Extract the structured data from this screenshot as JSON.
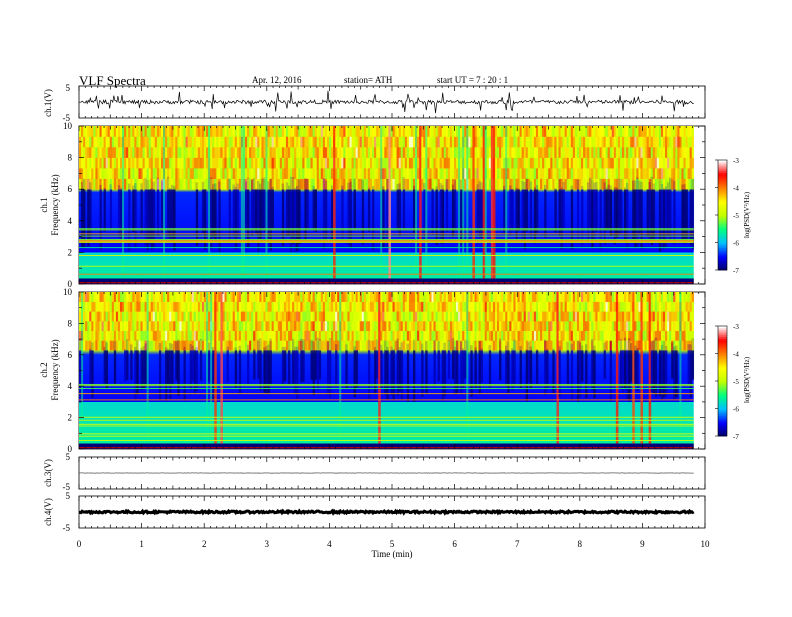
{
  "header": {
    "title": "VLF  Spectra",
    "date": "Apr. 12, 2016",
    "station": "station= ATH",
    "start": "start  UT  =   7  : 20 : 1"
  },
  "chart_data": {
    "type": "heatmap",
    "xlabel": "Time  (min)",
    "xlim": [
      0,
      10
    ],
    "x_ticks": [
      "0",
      "1",
      "2",
      "3",
      "4",
      "5",
      "6",
      "7",
      "8",
      "9",
      "10"
    ],
    "data_end_min": 9.82,
    "panels": [
      {
        "id": "ch1-waveform",
        "type": "line",
        "ylabel": "ch.1(V)",
        "ylim": [
          -5,
          5
        ],
        "y_ticks": [
          "5",
          "-5"
        ],
        "baseline_v": 0.0,
        "noise_amp_v": 0.6,
        "spike_amp_v": 3.0
      },
      {
        "id": "ch1-spectrogram",
        "type": "heatmap",
        "ylabel": "ch.1",
        "ylabel2": "Frequency  (kHz)",
        "ylim": [
          0,
          10
        ],
        "y_ticks": [
          "0",
          "2",
          "4",
          "6",
          "8",
          "10"
        ],
        "colorbar": {
          "label": "log(PSD(V²/Hz)",
          "range": [
            -7,
            -3
          ],
          "ticks": [
            "-3",
            "-4",
            "-5",
            "-6",
            "-7"
          ]
        },
        "bands_khz": {
          "strong_above": 6.0,
          "weak_between": [
            2.0,
            5.8
          ],
          "lines_below": 2.0
        }
      },
      {
        "id": "ch2-spectrogram",
        "type": "heatmap",
        "ylabel": "ch.2",
        "ylabel2": "Frequency  (kHz)",
        "ylim": [
          0,
          10
        ],
        "y_ticks": [
          "0",
          "2",
          "4",
          "6",
          "8",
          "10"
        ],
        "colorbar": {
          "label": "log(PSD(V²/Hz)",
          "range": [
            -7,
            -3
          ],
          "ticks": [
            "-3",
            "-4",
            "-5",
            "-6",
            "-7"
          ]
        },
        "bands_khz": {
          "strong_above": 6.3,
          "weak_between": [
            3.0,
            6.0
          ],
          "lines_below": 3.0
        }
      },
      {
        "id": "ch3-waveform",
        "type": "line",
        "ylabel": "ch.3(V)",
        "ylim": [
          -5,
          5
        ],
        "y_ticks": [
          "5",
          "-5"
        ],
        "baseline_v": 0.0,
        "noise_amp_v": 0.05,
        "spike_amp_v": 0
      },
      {
        "id": "ch4-waveform",
        "type": "line",
        "ylabel": "ch.4(V)",
        "ylim": [
          -5,
          5
        ],
        "y_ticks": [
          "5",
          "-5"
        ],
        "baseline_v": 0.0,
        "noise_amp_v": 0.3,
        "spike_amp_v": 0
      }
    ],
    "colormap": [
      "#000060",
      "#0000ff",
      "#00c0ff",
      "#00ff80",
      "#c0ff00",
      "#ffff00",
      "#ff8000",
      "#ff0000",
      "#ffffff"
    ]
  }
}
